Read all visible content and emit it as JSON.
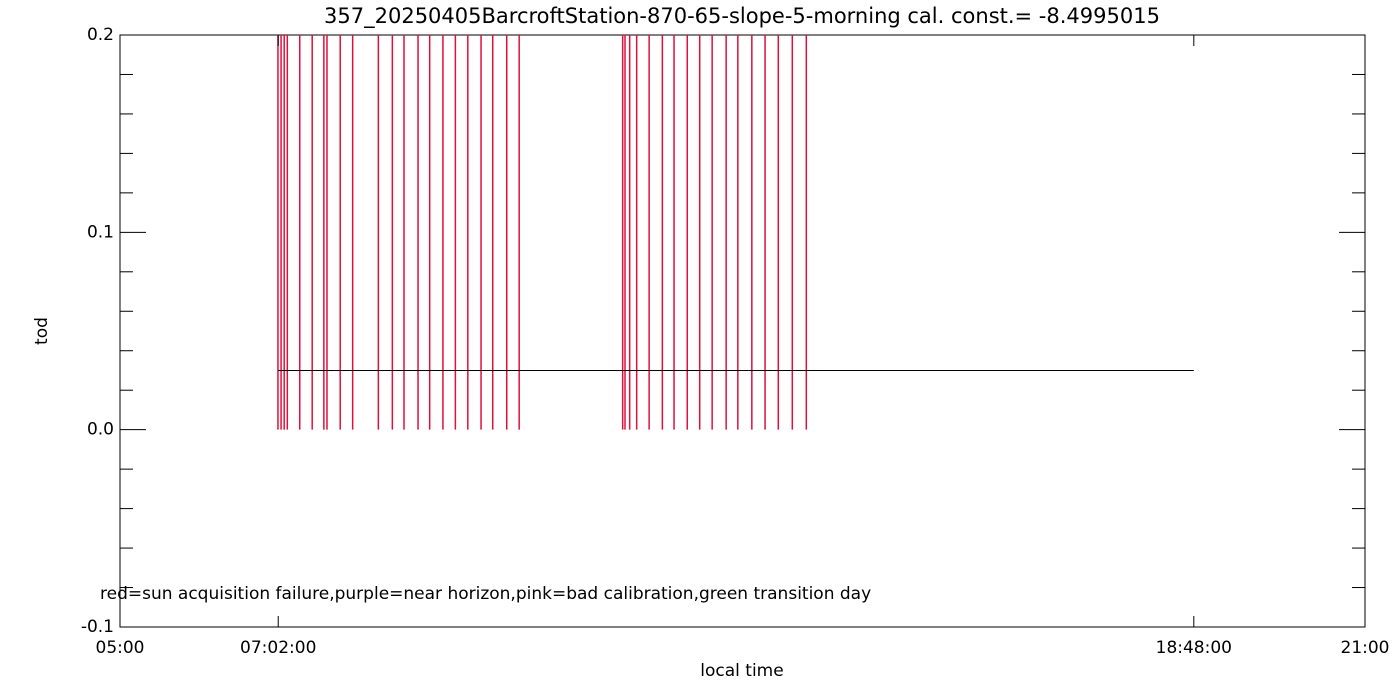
{
  "chart_data": {
    "type": "line",
    "title": "357_20250405BarcroftStation-870-65-slope-5-morning cal. const.= -8.4995015",
    "x_label": "local time",
    "y_label": "tod",
    "annotation": "red=sun acquisition failure,purple=near horizon,pink=bad calibration,green transition day",
    "x": [
      7.0333,
      18.8
    ],
    "values": [
      0.03,
      0.03
    ],
    "line_color": "#000000",
    "xlim": [
      5,
      21
    ],
    "xticks": [
      {
        "value": 5,
        "label": "05:00"
      },
      {
        "value": 7.0333,
        "label": "07:02:00"
      },
      {
        "value": 18.8,
        "label": "18:48:00"
      },
      {
        "value": 21,
        "label": "21:00"
      }
    ],
    "ylim": [
      -0.1,
      0.2
    ],
    "yticks": [
      {
        "value": -0.1,
        "label": "-0.1"
      },
      {
        "value": 0,
        "label": "0.0"
      },
      0.1,
      0.2
    ],
    "y_minor_ticks": [
      -0.08,
      -0.06,
      -0.04,
      -0.02,
      0.02,
      0.04,
      0.06,
      0.08,
      0.12,
      0.14,
      0.16,
      0.18
    ],
    "event_lines": {
      "color": "#e0103c",
      "y_from": 0,
      "y_to": 0.2,
      "x": [
        7.03,
        7.07,
        7.11,
        7.15,
        7.31,
        7.47,
        7.62,
        7.66,
        7.83,
        7.99,
        8.32,
        8.5,
        8.65,
        8.83,
        8.98,
        9.15,
        9.31,
        9.47,
        9.64,
        9.79,
        9.97,
        10.13,
        11.46,
        11.49,
        11.55,
        11.64,
        11.8,
        11.97,
        12.12,
        12.29,
        12.45,
        12.61,
        12.79,
        12.94,
        13.12,
        13.29,
        13.46,
        13.64,
        13.82
      ]
    }
  }
}
